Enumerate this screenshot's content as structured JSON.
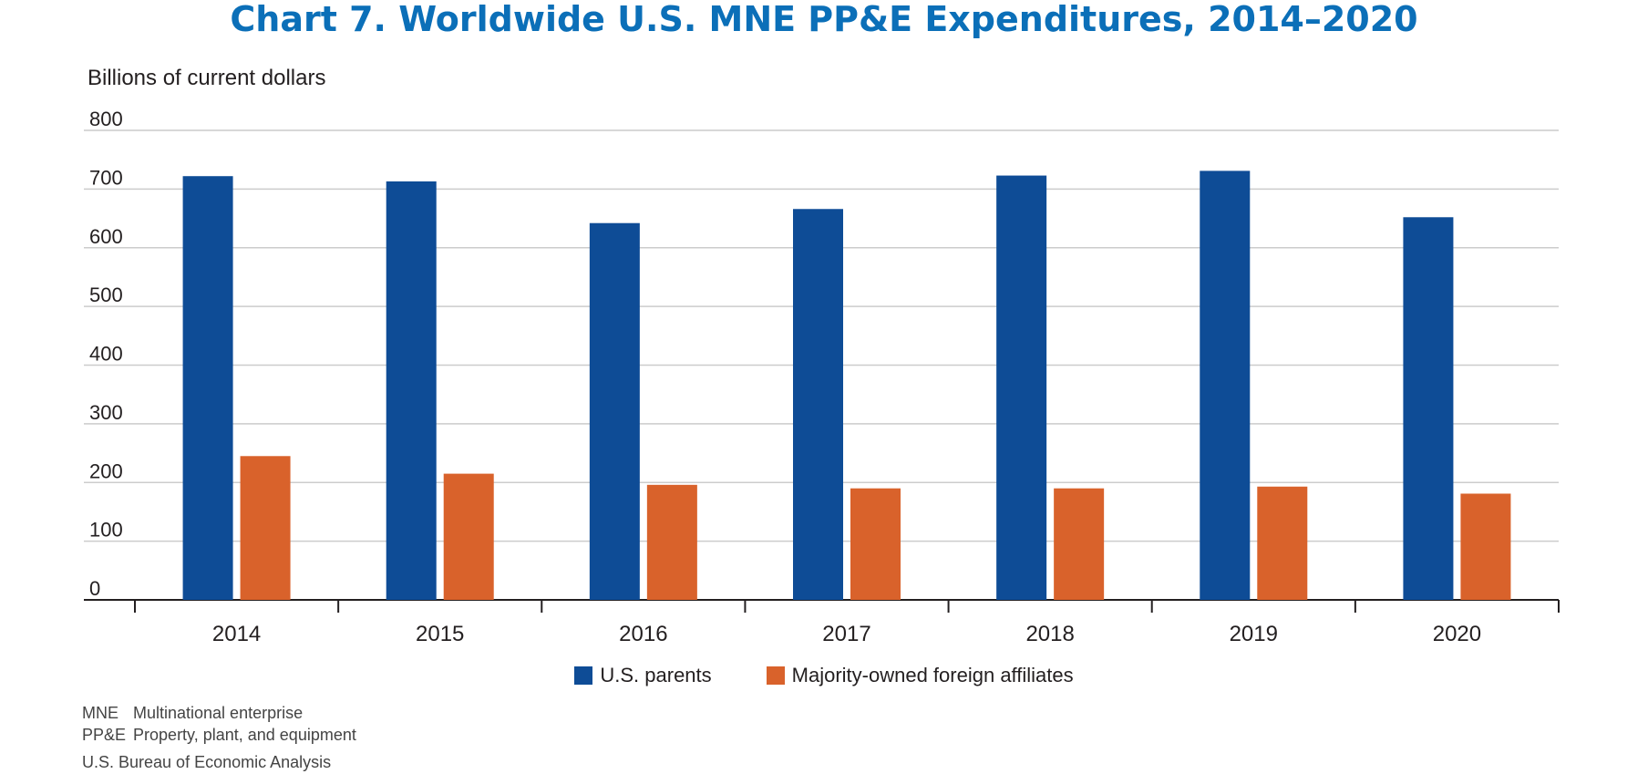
{
  "title": "Chart 7. Worldwide U.S. MNE PP&E Expenditures, 2014–2020",
  "colors": {
    "title": "#0b6fb8",
    "parents": "#0e4c96",
    "affiliates": "#d9622b",
    "grid": "#cccccc",
    "axis": "#231f20"
  },
  "notes": [
    {
      "abbr": "MNE",
      "text": "Multinational enterprise"
    },
    {
      "abbr": "PP&E",
      "text": "Property, plant, and equipment"
    }
  ],
  "source": "U.S. Bureau of Economic Analysis",
  "chart_data": {
    "type": "bar",
    "title": "Chart 7. Worldwide U.S. MNE PP&E Expenditures, 2014–2020",
    "ylabel": "Billions of current dollars",
    "xlabel": "",
    "categories": [
      "2014",
      "2015",
      "2016",
      "2017",
      "2018",
      "2019",
      "2020"
    ],
    "series": [
      {
        "name": "U.S. parents",
        "values": [
          722,
          713,
          642,
          666,
          723,
          731,
          652
        ]
      },
      {
        "name": "Majority-owned foreign affiliates",
        "values": [
          245,
          215,
          196,
          190,
          190,
          193,
          181
        ]
      }
    ],
    "ylim": [
      0,
      800
    ],
    "yticks": [
      0,
      100,
      200,
      300,
      400,
      500,
      600,
      700,
      800
    ],
    "grid": true,
    "legend": "bottom-center"
  }
}
